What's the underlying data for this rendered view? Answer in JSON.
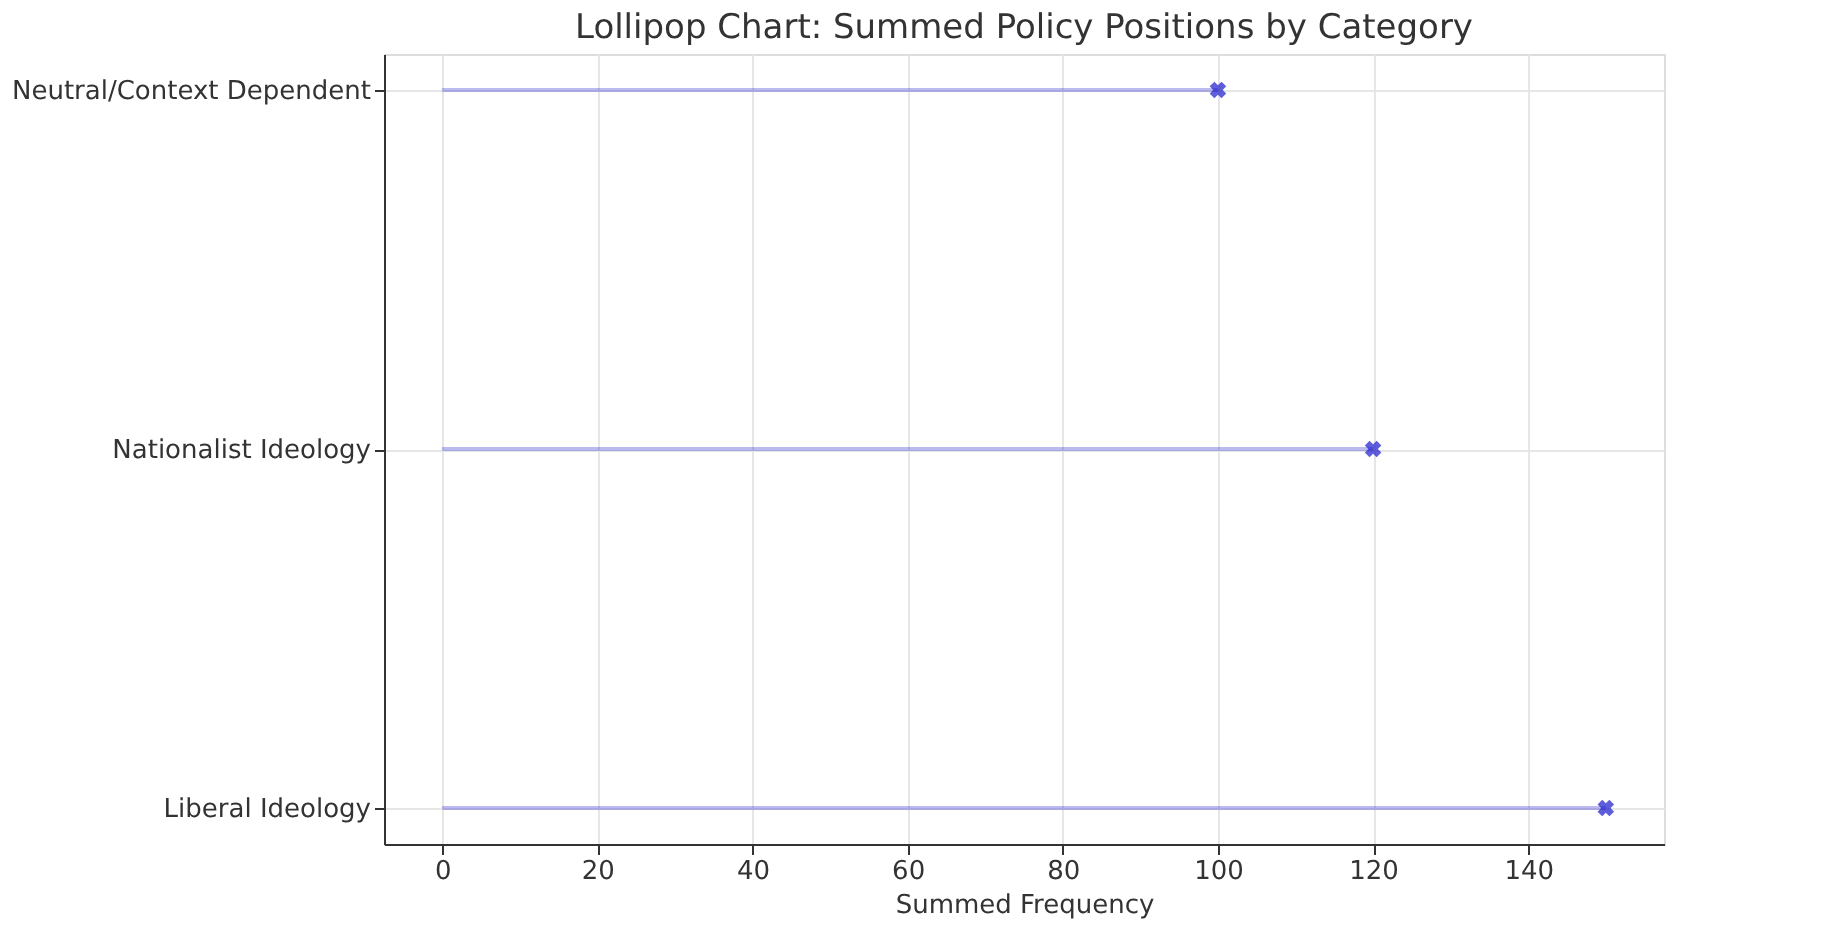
{
  "chart_data": {
    "type": "lollipop",
    "title": "Lollipop Chart: Summed Policy Positions by Category",
    "xlabel": "Summed Frequency",
    "orientation": "horizontal",
    "categories": [
      "Neutral/Context Dependent",
      "Nationalist Ideology",
      "Liberal Ideology"
    ],
    "series": [
      {
        "color": "#1a1acc",
        "values": [
          100,
          120,
          150
        ]
      }
    ],
    "xlim": [
      -7.5,
      157.5
    ],
    "xticks": [
      0,
      20,
      40,
      60,
      80,
      100,
      120,
      140
    ],
    "grid": true,
    "marker": "cross"
  }
}
